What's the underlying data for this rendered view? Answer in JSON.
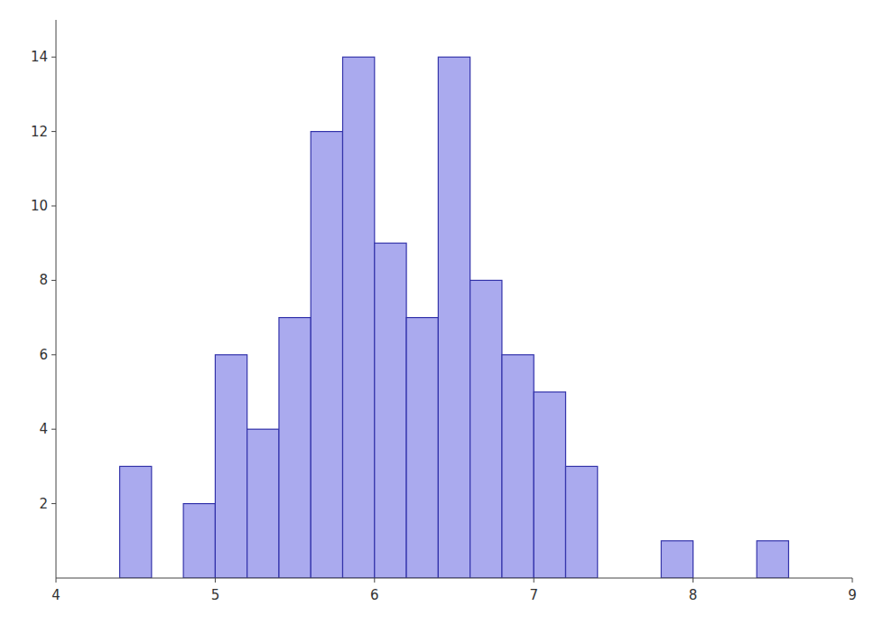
{
  "chart_data": {
    "type": "histogram",
    "bins": [
      4.4,
      4.6,
      4.8,
      5.0,
      5.2,
      5.4,
      5.6,
      5.8,
      6.0,
      6.2,
      6.4,
      6.6,
      6.8,
      7.0,
      7.2,
      7.4,
      7.6,
      7.8,
      8.0,
      8.2,
      8.4,
      8.6
    ],
    "values": [
      3,
      0,
      2,
      6,
      4,
      7,
      12,
      14,
      9,
      7,
      14,
      8,
      6,
      5,
      3,
      0,
      0,
      1,
      0,
      0,
      1
    ],
    "color": "#aaaaee",
    "xlim": [
      4,
      9
    ],
    "ylim": [
      0,
      15.0
    ],
    "xticks": [
      4,
      5,
      6,
      7,
      8,
      9
    ],
    "yticks": [
      2,
      4,
      6,
      8,
      10,
      12,
      14
    ],
    "grid": false
  }
}
